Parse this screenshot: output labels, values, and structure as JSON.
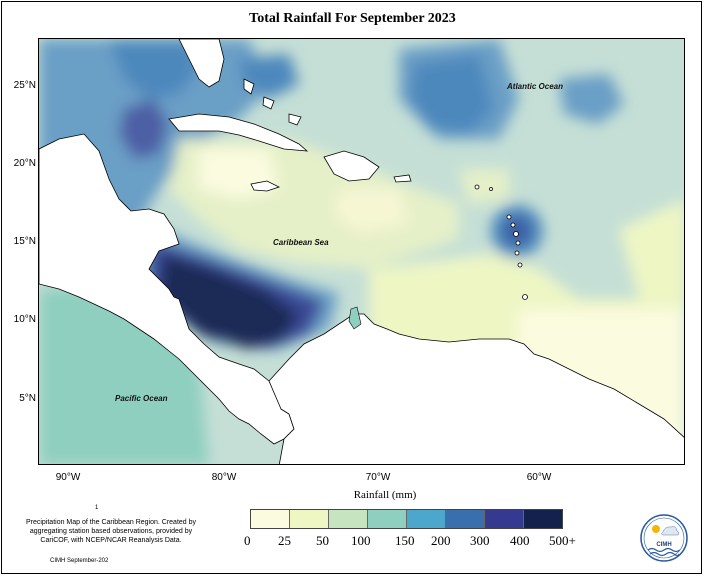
{
  "title": "Total Rainfall For September 2023",
  "latitude_labels": [
    "25°N",
    "20°N",
    "15°N",
    "10°N",
    "5°N"
  ],
  "longitude_labels": [
    "90°W",
    "80°W",
    "70°W",
    "60°W"
  ],
  "ocean_labels": {
    "atlantic": "Atlantic Ocean",
    "caribbean": "Caribbean Sea",
    "pacific": "Pacific Ocean"
  },
  "legend": {
    "title": "Rainfall (mm)",
    "ticks": [
      "0",
      "25",
      "50",
      "100",
      "150",
      "200",
      "300",
      "400",
      "500+"
    ],
    "colors": [
      "#fbfbdf",
      "#eef6c4",
      "#c7e4c0",
      "#8fcfc0",
      "#4ba8cc",
      "#3a6fae",
      "#35398f",
      "#12224d"
    ]
  },
  "caption": "Precipitation Map of the Caribbean Region. Created by aggregating station based observations, provided by CariCOF, with NCEP/NCAR Reanalysis Data.",
  "credit": "CIMH September-202",
  "footnote_mark": "1",
  "logo": {
    "text": "CIMH"
  }
}
